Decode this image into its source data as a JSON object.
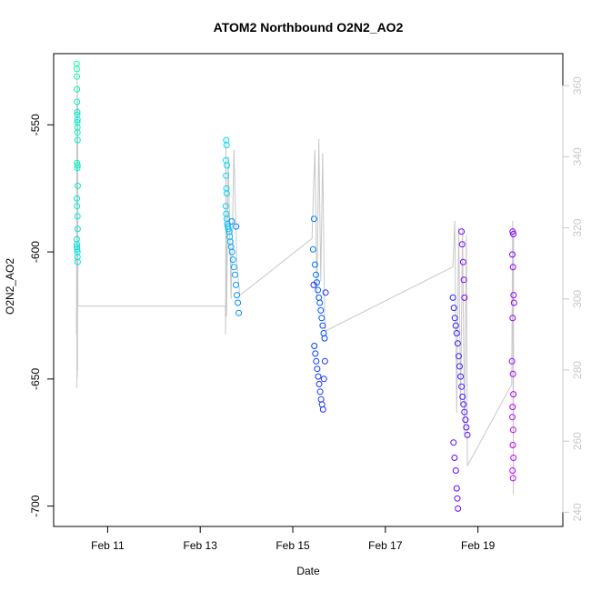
{
  "chart_data": {
    "type": "scatter",
    "title": "ATOM2 Northbound O2N2_AO2",
    "xlabel": "Date",
    "ylabel": "O2N2_AO2",
    "x_ticks": [
      "Feb 11",
      "Feb 13",
      "Feb 15",
      "Feb 17",
      "Feb 19"
    ],
    "y_ticks": [
      -550,
      -600,
      -650,
      -700
    ],
    "y2_ticks": [
      240,
      260,
      280,
      300,
      320,
      340,
      360
    ],
    "xlim": [
      "2019-02-09T20:00",
      "2019-02-20T20:00"
    ],
    "ylim": [
      -708,
      -522
    ],
    "y2lim": [
      236,
      369
    ],
    "grid": false,
    "colors": {
      "line": "#c8c8c8",
      "right_axis": "#c8c8c8",
      "gradient": [
        "#00ffaa",
        "#00d4ff",
        "#0040ff",
        "#6a00ff",
        "#d000ff"
      ]
    },
    "series": [
      {
        "cluster": 1,
        "points": [
          [
            "2019-02-10T07:55",
            -526
          ],
          [
            "2019-02-10T07:58",
            -528
          ],
          [
            "2019-02-10T08:02",
            -531
          ],
          [
            "2019-02-10T08:05",
            -536
          ],
          [
            "2019-02-10T08:08",
            -541
          ],
          [
            "2019-02-10T08:12",
            -546
          ],
          [
            "2019-02-10T08:15",
            -549
          ],
          [
            "2019-02-10T08:18",
            -551
          ],
          [
            "2019-02-10T08:22",
            -553
          ],
          [
            "2019-02-10T08:25",
            -556
          ],
          [
            "2019-02-10T08:05",
            -565
          ],
          [
            "2019-02-10T08:15",
            -567
          ],
          [
            "2019-02-10T08:25",
            -566
          ],
          [
            "2019-02-10T08:30",
            -574
          ],
          [
            "2019-02-10T08:00",
            -579
          ],
          [
            "2019-02-10T08:10",
            -582
          ],
          [
            "2019-02-10T08:20",
            -586
          ],
          [
            "2019-02-10T08:28",
            -591
          ],
          [
            "2019-02-10T07:58",
            -595
          ],
          [
            "2019-02-10T08:06",
            -597
          ],
          [
            "2019-02-10T08:12",
            -599
          ],
          [
            "2019-02-10T08:18",
            -600
          ],
          [
            "2019-02-10T08:22",
            -602
          ],
          [
            "2019-02-10T08:28",
            -604
          ],
          [
            "2019-02-10T08:00",
            -598
          ],
          [
            "2019-02-10T08:15",
            -545
          ],
          [
            "2019-02-10T08:20",
            -548
          ]
        ]
      },
      {
        "cluster": 2,
        "points": [
          [
            "2019-02-13T13:30",
            -556
          ],
          [
            "2019-02-13T13:40",
            -558
          ],
          [
            "2019-02-13T13:20",
            -564
          ],
          [
            "2019-02-13T13:50",
            -566
          ],
          [
            "2019-02-13T13:25",
            -570
          ],
          [
            "2019-02-13T13:35",
            -575
          ],
          [
            "2019-02-13T13:45",
            -577
          ],
          [
            "2019-02-13T13:15",
            -582
          ],
          [
            "2019-02-13T13:30",
            -585
          ],
          [
            "2019-02-13T13:45",
            -587
          ],
          [
            "2019-02-13T14:00",
            -589
          ],
          [
            "2019-02-13T14:20",
            -590
          ],
          [
            "2019-02-13T14:40",
            -591
          ],
          [
            "2019-02-13T15:00",
            -592
          ],
          [
            "2019-02-13T15:20",
            -594
          ],
          [
            "2019-02-13T15:40",
            -596
          ],
          [
            "2019-02-13T16:00",
            -598
          ],
          [
            "2019-02-13T16:30",
            -600
          ],
          [
            "2019-02-13T17:00",
            -603
          ],
          [
            "2019-02-13T17:30",
            -606
          ],
          [
            "2019-02-13T18:00",
            -609
          ],
          [
            "2019-02-13T18:30",
            -613
          ],
          [
            "2019-02-13T19:00",
            -617
          ],
          [
            "2019-02-13T19:30",
            -620
          ],
          [
            "2019-02-13T20:00",
            -624
          ],
          [
            "2019-02-13T16:20",
            -588
          ],
          [
            "2019-02-13T18:40",
            -590
          ]
        ]
      },
      {
        "cluster": 3,
        "points": [
          [
            "2019-02-15T11:00",
            -587
          ],
          [
            "2019-02-15T10:30",
            -599
          ],
          [
            "2019-02-15T11:30",
            -605
          ],
          [
            "2019-02-15T12:00",
            -609
          ],
          [
            "2019-02-15T12:30",
            -612
          ],
          [
            "2019-02-15T13:00",
            -615
          ],
          [
            "2019-02-15T13:30",
            -618
          ],
          [
            "2019-02-15T14:00",
            -620
          ],
          [
            "2019-02-15T14:30",
            -623
          ],
          [
            "2019-02-15T15:00",
            -626
          ],
          [
            "2019-02-15T15:30",
            -629
          ],
          [
            "2019-02-15T16:00",
            -632
          ],
          [
            "2019-02-15T16:30",
            -634
          ],
          [
            "2019-02-15T11:10",
            -637
          ],
          [
            "2019-02-15T11:40",
            -640
          ],
          [
            "2019-02-15T12:10",
            -643
          ],
          [
            "2019-02-15T12:40",
            -646
          ],
          [
            "2019-02-15T13:10",
            -649
          ],
          [
            "2019-02-15T13:40",
            -652
          ],
          [
            "2019-02-15T14:10",
            -655
          ],
          [
            "2019-02-15T14:40",
            -658
          ],
          [
            "2019-02-15T15:10",
            -660
          ],
          [
            "2019-02-15T15:40",
            -662
          ],
          [
            "2019-02-15T16:10",
            -650
          ],
          [
            "2019-02-15T16:40",
            -643
          ],
          [
            "2019-02-15T10:50",
            -613
          ],
          [
            "2019-02-15T17:00",
            -616
          ]
        ]
      },
      {
        "cluster": 4,
        "points": [
          [
            "2019-02-18T11:00",
            -618
          ],
          [
            "2019-02-18T11:30",
            -622
          ],
          [
            "2019-02-18T12:00",
            -626
          ],
          [
            "2019-02-18T12:30",
            -629
          ],
          [
            "2019-02-18T13:00",
            -632
          ],
          [
            "2019-02-18T13:30",
            -636
          ],
          [
            "2019-02-18T14:00",
            -641
          ],
          [
            "2019-02-18T14:30",
            -645
          ],
          [
            "2019-02-18T15:00",
            -649
          ],
          [
            "2019-02-18T15:30",
            -653
          ],
          [
            "2019-02-18T16:00",
            -657
          ],
          [
            "2019-02-18T16:30",
            -660
          ],
          [
            "2019-02-18T17:00",
            -663
          ],
          [
            "2019-02-18T17:30",
            -666
          ],
          [
            "2019-02-18T18:00",
            -669
          ],
          [
            "2019-02-18T18:30",
            -672
          ],
          [
            "2019-02-18T11:20",
            -675
          ],
          [
            "2019-02-18T11:50",
            -681
          ],
          [
            "2019-02-18T12:30",
            -686
          ],
          [
            "2019-02-18T13:00",
            -693
          ],
          [
            "2019-02-18T13:20",
            -697
          ],
          [
            "2019-02-18T13:40",
            -701
          ],
          [
            "2019-02-18T15:30",
            -592
          ],
          [
            "2019-02-18T15:50",
            -597
          ],
          [
            "2019-02-18T16:20",
            -604
          ],
          [
            "2019-02-18T16:40",
            -611
          ],
          [
            "2019-02-18T17:00",
            -618
          ]
        ]
      },
      {
        "cluster": 5,
        "points": [
          [
            "2019-02-19T18:00",
            -592
          ],
          [
            "2019-02-19T18:20",
            -593
          ],
          [
            "2019-02-19T17:50",
            -601
          ],
          [
            "2019-02-19T18:10",
            -606
          ],
          [
            "2019-02-19T18:30",
            -617
          ],
          [
            "2019-02-19T18:40",
            -620
          ],
          [
            "2019-02-19T18:00",
            -626
          ],
          [
            "2019-02-19T17:40",
            -643
          ],
          [
            "2019-02-19T18:10",
            -648
          ],
          [
            "2019-02-19T18:20",
            -656
          ],
          [
            "2019-02-19T18:00",
            -661
          ],
          [
            "2019-02-19T17:50",
            -665
          ],
          [
            "2019-02-19T18:15",
            -670
          ],
          [
            "2019-02-19T18:05",
            -676
          ],
          [
            "2019-02-19T18:25",
            -681
          ],
          [
            "2019-02-19T17:55",
            -686
          ],
          [
            "2019-02-19T18:10",
            -689
          ]
        ]
      }
    ],
    "line_values": [
      [
        "2019-02-10T07:50",
        290
      ],
      [
        "2019-02-10T08:00",
        355
      ],
      [
        "2019-02-10T08:05",
        275
      ],
      [
        "2019-02-10T08:10",
        366
      ],
      [
        "2019-02-10T08:15",
        278
      ],
      [
        "2019-02-10T08:20",
        360
      ],
      [
        "2019-02-10T08:25",
        280
      ],
      [
        "2019-02-10T08:30",
        355
      ],
      [
        "2019-02-10T08:35",
        298
      ],
      [
        "2019-02-13T13:00",
        298
      ],
      [
        "2019-02-13T13:10",
        290
      ],
      [
        "2019-02-13T13:20",
        345
      ],
      [
        "2019-02-13T13:40",
        295
      ],
      [
        "2019-02-13T14:30",
        340
      ],
      [
        "2019-02-13T16:00",
        300
      ],
      [
        "2019-02-13T17:30",
        342
      ],
      [
        "2019-02-13T19:00",
        310
      ],
      [
        "2019-02-13T20:30",
        301
      ],
      [
        "2019-02-15T10:00",
        317
      ],
      [
        "2019-02-15T10:40",
        330
      ],
      [
        "2019-02-15T11:30",
        342
      ],
      [
        "2019-02-15T12:30",
        300
      ],
      [
        "2019-02-15T13:30",
        345
      ],
      [
        "2019-02-15T14:30",
        305
      ],
      [
        "2019-02-15T15:30",
        341
      ],
      [
        "2019-02-15T16:30",
        295
      ],
      [
        "2019-02-15T17:00",
        291
      ],
      [
        "2019-02-18T11:00",
        309
      ],
      [
        "2019-02-18T12:00",
        322
      ],
      [
        "2019-02-18T13:00",
        268
      ],
      [
        "2019-02-18T14:00",
        320
      ],
      [
        "2019-02-18T15:00",
        270
      ],
      [
        "2019-02-18T16:00",
        320
      ],
      [
        "2019-02-18T17:00",
        262
      ],
      [
        "2019-02-18T18:00",
        318
      ],
      [
        "2019-02-18T18:30",
        253
      ],
      [
        "2019-02-19T17:30",
        276
      ],
      [
        "2019-02-19T18:00",
        322
      ],
      [
        "2019-02-19T18:20",
        245
      ],
      [
        "2019-02-19T18:30",
        320
      ]
    ]
  }
}
